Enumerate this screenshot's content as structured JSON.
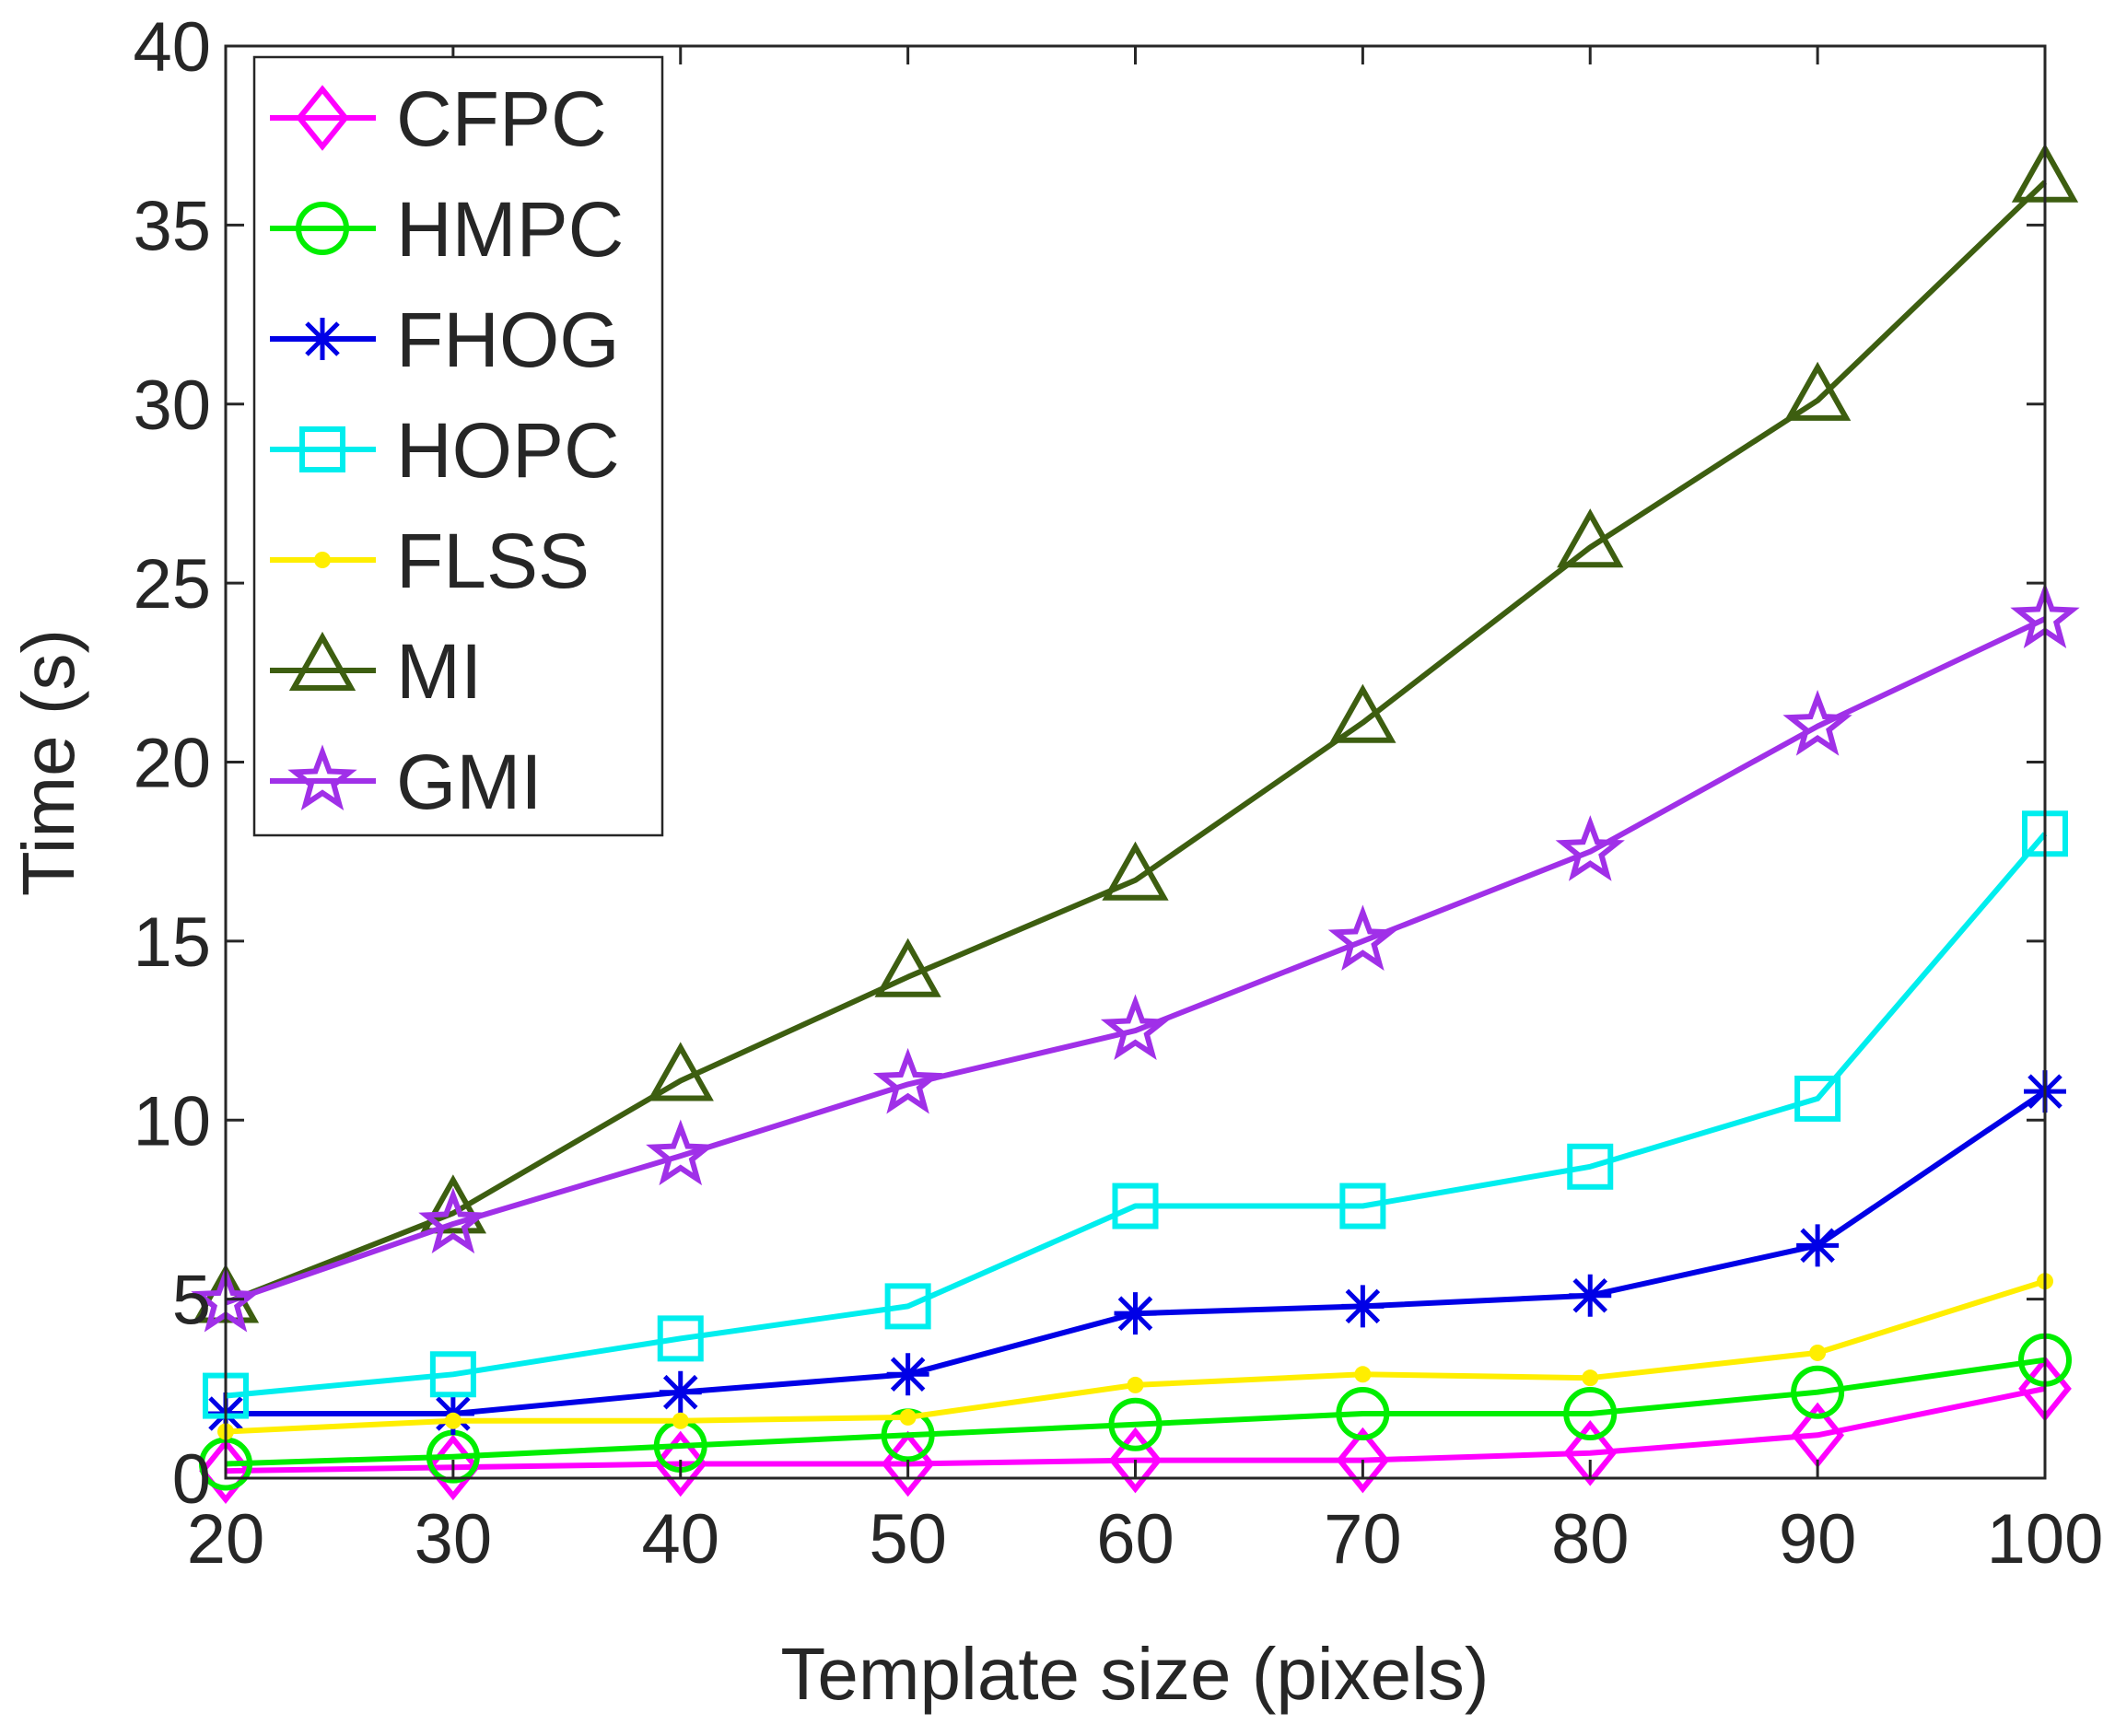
{
  "chart_data": {
    "type": "line",
    "title": "",
    "xlabel": "Template size (pixels)",
    "ylabel": "Time (s)",
    "x": [
      20,
      30,
      40,
      50,
      60,
      70,
      80,
      90,
      100
    ],
    "xlim": [
      20,
      100
    ],
    "ylim": [
      0,
      40
    ],
    "xticks": [
      "20",
      "30",
      "40",
      "50",
      "60",
      "70",
      "80",
      "90",
      "100"
    ],
    "yticks": [
      "0",
      "5",
      "10",
      "15",
      "20",
      "25",
      "30",
      "35",
      "40"
    ],
    "grid": false,
    "legend_position": "top-left",
    "series": [
      {
        "name": "CFPC",
        "color": "#ff00ff",
        "marker": "diamond",
        "values": [
          0.2,
          0.3,
          0.4,
          0.4,
          0.5,
          0.5,
          0.7,
          1.2,
          2.5
        ]
      },
      {
        "name": "HMPC",
        "color": "#00ee00",
        "marker": "circle",
        "values": [
          0.4,
          0.6,
          0.9,
          1.2,
          1.5,
          1.8,
          1.8,
          2.4,
          3.3
        ]
      },
      {
        "name": "FHOG",
        "color": "#0000e6",
        "marker": "asterisk",
        "values": [
          1.8,
          1.8,
          2.4,
          2.9,
          4.6,
          4.8,
          5.1,
          6.5,
          10.8
        ]
      },
      {
        "name": "HOPC",
        "color": "#00eeee",
        "marker": "square",
        "values": [
          2.3,
          2.9,
          3.9,
          4.8,
          7.6,
          7.6,
          8.7,
          10.6,
          18.0
        ]
      },
      {
        "name": "FLSS",
        "color": "#ffee00",
        "marker": "dot",
        "values": [
          1.3,
          1.6,
          1.6,
          1.7,
          2.6,
          2.9,
          2.8,
          3.5,
          5.5
        ]
      },
      {
        "name": "MI",
        "color": "#3d5e10",
        "marker": "triangle",
        "values": [
          4.9,
          7.4,
          11.1,
          14.0,
          16.7,
          21.1,
          26.0,
          30.1,
          36.2
        ]
      },
      {
        "name": "GMI",
        "color": "#a030e8",
        "marker": "star",
        "values": [
          4.9,
          7.1,
          9.0,
          11.0,
          12.5,
          15.0,
          17.5,
          21.0,
          24.0
        ]
      }
    ]
  }
}
